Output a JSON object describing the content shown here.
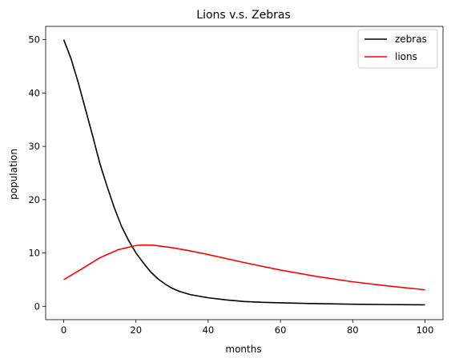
{
  "chart_data": {
    "type": "line",
    "title": "Lions v.s. Zebras",
    "xlabel": "months",
    "ylabel": "population",
    "xlim": [
      -5,
      105
    ],
    "ylim": [
      -2.5,
      52.5
    ],
    "grid": false,
    "legend_position": "top-right",
    "x_ticks": [
      0,
      20,
      40,
      60,
      80,
      100
    ],
    "x_tick_labels": [
      "0",
      "20",
      "40",
      "60",
      "80",
      "100"
    ],
    "y_ticks": [
      0,
      10,
      20,
      30,
      40,
      50
    ],
    "y_tick_labels": [
      "0",
      "10",
      "20",
      "30",
      "40",
      "50"
    ],
    "series": [
      {
        "name": "zebras",
        "color": "#000000",
        "x": [
          0,
          2,
          4,
          6,
          8,
          10,
          12,
          14,
          16,
          18,
          20,
          22,
          24,
          26,
          28,
          30,
          32,
          35,
          40,
          45,
          50,
          55,
          60,
          70,
          80,
          90,
          100
        ],
        "y": [
          50,
          46.5,
          42,
          37,
          32,
          26.8,
          22.5,
          18.5,
          15,
          12.3,
          10,
          8.2,
          6.5,
          5.2,
          4.2,
          3.4,
          2.8,
          2.2,
          1.6,
          1.2,
          0.9,
          0.75,
          0.65,
          0.5,
          0.4,
          0.33,
          0.28
        ]
      },
      {
        "name": "lions",
        "color": "#ff0000",
        "x": [
          0,
          5,
          10,
          15,
          20,
          22,
          25,
          30,
          35,
          40,
          50,
          60,
          70,
          80,
          90,
          100
        ],
        "y": [
          5,
          7,
          9.1,
          10.6,
          11.4,
          11.5,
          11.45,
          11,
          10.4,
          9.7,
          8.2,
          6.8,
          5.6,
          4.6,
          3.8,
          3.1
        ]
      }
    ]
  }
}
